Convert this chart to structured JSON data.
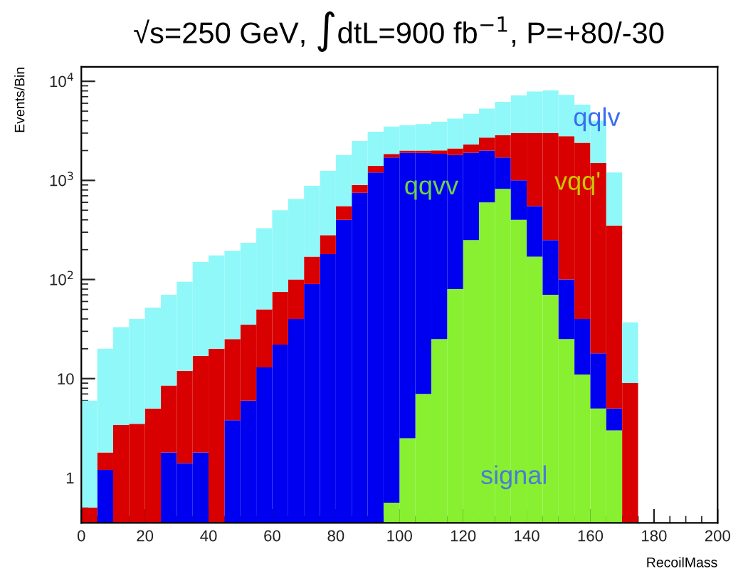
{
  "chart_data": {
    "type": "bar",
    "stacked": true,
    "title": "√s=250 GeV, ∫dtL=900 fb$^{−1}$, P=+80/-30",
    "xlabel": "RecoilMass",
    "ylabel": "Events/Bin",
    "x": [
      2.5,
      7.5,
      12.5,
      17.5,
      22.5,
      27.5,
      32.5,
      37.5,
      42.5,
      47.5,
      52.5,
      57.5,
      62.5,
      67.5,
      72.5,
      77.5,
      82.5,
      87.5,
      92.5,
      97.5,
      102.5,
      107.5,
      112.5,
      117.5,
      122.5,
      127.5,
      132.5,
      137.5,
      142.5,
      147.5,
      152.5,
      157.5,
      162.5,
      167.5,
      172.5
    ],
    "series": [
      {
        "name": "signal",
        "color": "#88f030",
        "values": [
          null,
          null,
          null,
          null,
          null,
          null,
          null,
          null,
          null,
          null,
          null,
          null,
          null,
          null,
          null,
          null,
          null,
          null,
          null,
          0.56,
          2.5,
          7,
          25,
          80,
          250,
          600,
          820,
          400,
          170,
          70,
          25,
          11,
          5,
          3,
          null
        ]
      },
      {
        "name": "qqvv",
        "color": "#0000f0",
        "values": [
          null,
          1.2,
          null,
          null,
          null,
          1.8,
          1.4,
          1.8,
          null,
          3.8,
          6,
          13,
          22,
          40,
          90,
          180,
          400,
          750,
          1200,
          1700,
          1900,
          1890,
          1830,
          1720,
          1650,
          1400,
          880,
          600,
          380,
          180,
          75,
          29,
          13,
          2,
          null
        ]
      },
      {
        "name": "vqq'",
        "color": "#d80000",
        "values": [
          0.5,
          0.6,
          3.4,
          3.5,
          5,
          6.7,
          10.6,
          15.2,
          20,
          21.2,
          29,
          37,
          53,
          60,
          80,
          100,
          150,
          150,
          200,
          150,
          100,
          100,
          150,
          300,
          400,
          700,
          1150,
          2000,
          2450,
          2750,
          2700,
          2360,
          1480,
          345,
          9
        ]
      },
      {
        "name": "qqlv",
        "color": "#90f8f8",
        "values": [
          5.5,
          18.2,
          29.6,
          36.5,
          47,
          61.5,
          83,
          133,
          155,
          170,
          200,
          280,
          425,
          550,
          710,
          970,
          1250,
          1600,
          1700,
          1650,
          1600,
          1700,
          1900,
          2100,
          2400,
          2600,
          3350,
          4200,
          4900,
          5100,
          4500,
          3400,
          2500,
          850,
          28
        ]
      }
    ],
    "log": "y",
    "xlim": [
      0,
      200
    ],
    "ylim": [
      0.35,
      14000
    ],
    "xticks": [
      0,
      20,
      40,
      60,
      80,
      100,
      120,
      140,
      160,
      180,
      200
    ],
    "yticks": [
      {
        "value": 1,
        "label": "1"
      },
      {
        "value": 10,
        "label": "10"
      },
      {
        "value": 100,
        "label": "10$^{2}$"
      },
      {
        "value": 1000,
        "label": "10$^{3}$"
      },
      {
        "value": 10000,
        "label": "10$^{4}$"
      }
    ],
    "grid": false,
    "legend": false
  }
}
